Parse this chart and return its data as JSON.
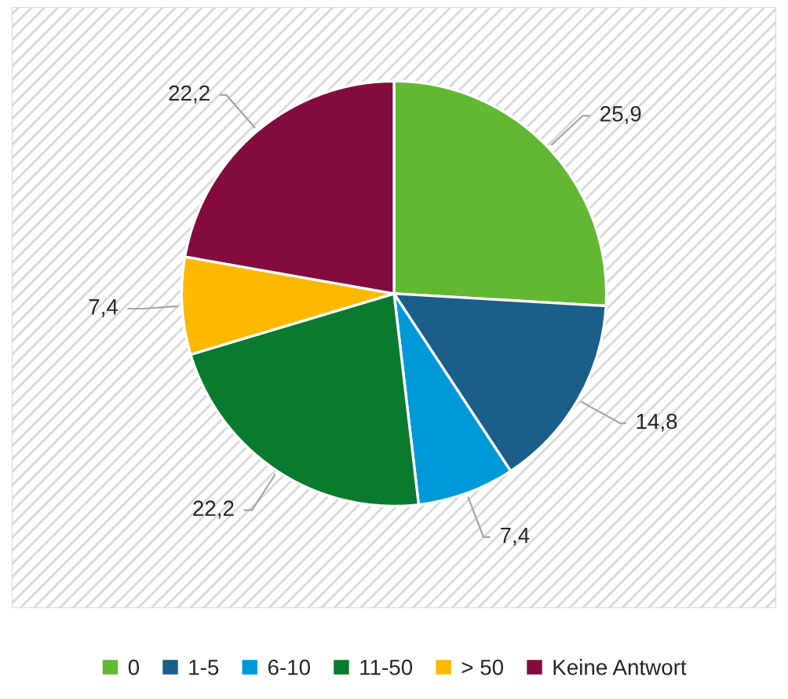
{
  "chart_data": {
    "type": "pie",
    "categories": [
      "0",
      "1-5",
      "6-10",
      "11-50",
      "> 50",
      "Keine Antwort"
    ],
    "values": [
      25.9,
      14.8,
      7.4,
      22.2,
      7.4,
      22.2
    ],
    "value_labels": [
      "25,9",
      "14,8",
      "7,4",
      "22,2",
      "7,4",
      "22,2"
    ],
    "colors": [
      "#62b832",
      "#1a5e8a",
      "#0099d8",
      "#0a7a2e",
      "#fcb900",
      "#840b3d"
    ],
    "legend": "bottom"
  }
}
